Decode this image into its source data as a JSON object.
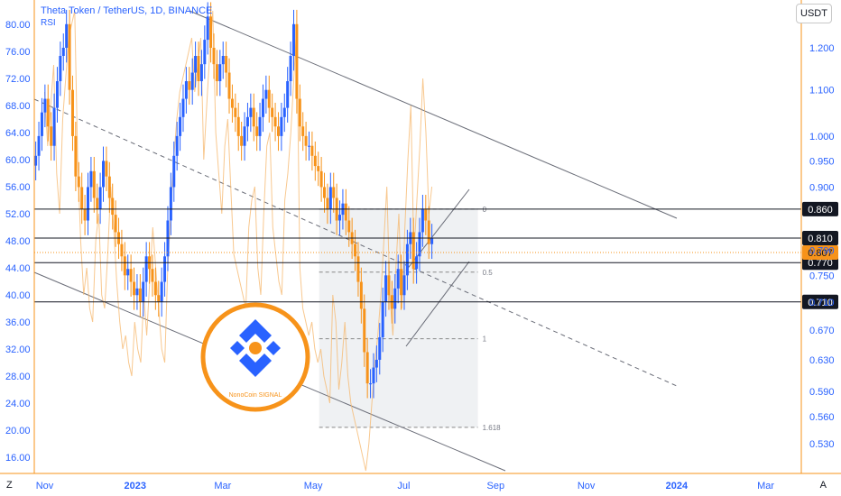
{
  "header": {
    "title": "Theta Token / TetherUS, 1D, BINANCE",
    "indicator": "RSI",
    "currency": "USDT"
  },
  "buttons": {
    "left": "Z",
    "right": "A"
  },
  "chart_data": {
    "type": "candlestick",
    "title": "Theta Token / TetherUS, 1D, BINANCE",
    "indicator": {
      "name": "RSI",
      "ylim": [
        14,
        84
      ],
      "ticks": [
        16,
        20,
        24,
        28,
        32,
        36,
        40,
        44,
        48,
        52,
        56,
        60,
        64,
        68,
        72,
        76,
        80
      ],
      "tick_labels": [
        "16.00",
        "20.00",
        "24.00",
        "28.00",
        "32.00",
        "36.00",
        "40.00",
        "44.00",
        "48.00",
        "52.00",
        "56.00",
        "60.00",
        "64.00",
        "68.00",
        "72.00",
        "76.00",
        "80.00"
      ]
    },
    "price_axis": {
      "scale": "log",
      "ylim": [
        0.52,
        1.3
      ],
      "ticks": [
        0.53,
        0.56,
        0.59,
        0.63,
        0.67,
        0.71,
        0.75,
        0.79,
        0.81,
        0.86,
        0.9,
        0.95,
        1.0,
        1.1,
        1.2
      ],
      "tick_labels": [
        "0.530",
        "0.560",
        "0.590",
        "0.630",
        "0.670",
        "0.710",
        "0.750",
        "0.790",
        "0.810",
        "0.860",
        "0.900",
        "0.950",
        "1.000",
        "1.100",
        "1.200"
      ]
    },
    "time_axis": {
      "labels": [
        "Nov",
        "2023",
        "Mar",
        "May",
        "Jul",
        "Sep",
        "Nov",
        "2024",
        "Mar"
      ],
      "bold": [
        "2023",
        "2024"
      ],
      "dates": [
        "2022-11-01",
        "2023-01-01",
        "2023-03-01",
        "2023-05-01",
        "2023-07-01",
        "2023-09-01",
        "2023-11-01",
        "2024-01-01",
        "2024-03-01"
      ]
    },
    "candles_close": [
      0.96,
      1.0,
      1.05,
      1.08,
      1.02,
      0.98,
      1.06,
      1.12,
      1.18,
      1.2,
      1.26,
      1.1,
      1.0,
      0.92,
      0.9,
      0.86,
      0.84,
      0.9,
      0.93,
      0.88,
      0.86,
      0.9,
      0.95,
      0.92,
      0.88,
      0.85,
      0.82,
      0.8,
      0.78,
      0.75,
      0.76,
      0.74,
      0.72,
      0.73,
      0.71,
      0.74,
      0.78,
      0.76,
      0.74,
      0.72,
      0.71,
      0.74,
      0.78,
      0.84,
      0.9,
      0.96,
      1.0,
      1.04,
      1.08,
      1.12,
      1.1,
      1.14,
      1.18,
      1.12,
      1.16,
      1.22,
      1.28,
      1.2,
      1.16,
      1.12,
      1.16,
      1.18,
      1.14,
      1.08,
      1.06,
      1.04,
      1.0,
      0.98,
      1.02,
      1.04,
      1.06,
      1.02,
      1.0,
      1.04,
      1.08,
      1.1,
      1.06,
      1.04,
      1.02,
      1.0,
      1.04,
      1.06,
      1.12,
      1.18,
      1.26,
      1.08,
      1.02,
      1.0,
      0.98,
      0.98,
      0.96,
      0.94,
      0.93,
      0.9,
      0.88,
      0.86,
      0.9,
      0.88,
      0.84,
      0.85,
      0.87,
      0.84,
      0.82,
      0.8,
      0.78,
      0.74,
      0.7,
      0.64,
      0.6,
      0.6,
      0.62,
      0.63,
      0.66,
      0.71,
      0.75,
      0.72,
      0.7,
      0.73,
      0.76,
      0.72,
      0.75,
      0.8,
      0.82,
      0.76,
      0.78,
      0.82,
      0.86,
      0.84,
      0.8,
      0.81
    ],
    "current_price": "0.807",
    "levels": [
      {
        "value": 0.86,
        "label": "0.860"
      },
      {
        "value": 0.81,
        "label": "0.810"
      },
      {
        "value": 0.77,
        "label": "0.770"
      },
      {
        "value": 0.71,
        "label": "0.710"
      }
    ],
    "fib": [
      {
        "level": "0",
        "value": 0.86
      },
      {
        "level": "0.5",
        "value": 0.755
      },
      {
        "level": "1",
        "value": 0.658
      },
      {
        "level": "1.618",
        "value": 0.548
      }
    ],
    "rsi_values": [
      70,
      62,
      68,
      74,
      58,
      52,
      66,
      72,
      78,
      80,
      82,
      60,
      48,
      40,
      44,
      38,
      36,
      48,
      52,
      40,
      38,
      46,
      56,
      50,
      42,
      36,
      32,
      34,
      30,
      28,
      36,
      32,
      30,
      40,
      34,
      42,
      50,
      44,
      38,
      32,
      30,
      44,
      52,
      60,
      66,
      70,
      72,
      74,
      76,
      78,
      70,
      74,
      78,
      60,
      68,
      76,
      82,
      64,
      58,
      52,
      62,
      66,
      56,
      46,
      44,
      42,
      40,
      38,
      50,
      54,
      56,
      44,
      40,
      52,
      62,
      64,
      50,
      46,
      42,
      40,
      54,
      58,
      64,
      72,
      80,
      44,
      38,
      36,
      34,
      36,
      32,
      30,
      32,
      28,
      26,
      24,
      40,
      36,
      26,
      30,
      36,
      28,
      24,
      22,
      20,
      18,
      16,
      14,
      18,
      24,
      30,
      34,
      40,
      48,
      56,
      40,
      34,
      44,
      52,
      38,
      50,
      60,
      68,
      46,
      54,
      62,
      72,
      64,
      52,
      56
    ],
    "logo_text": "NonoCoin SIGNAL"
  }
}
